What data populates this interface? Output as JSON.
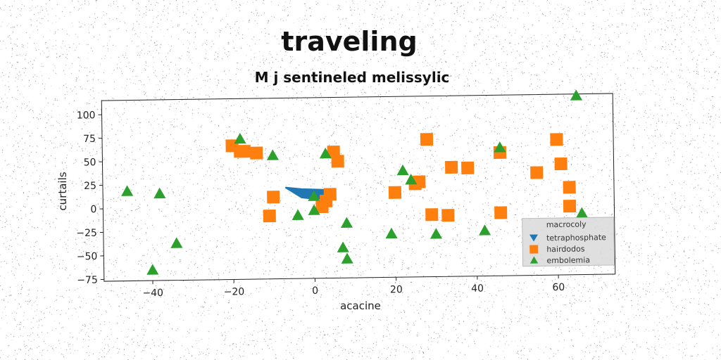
{
  "chart_data": {
    "type": "scatter",
    "title": "traveling",
    "subtitle": "M j sentineled melissylic",
    "xlabel": "acacine",
    "ylabel": "curtails",
    "xlim": [
      -52,
      74
    ],
    "ylim": [
      -77,
      115
    ],
    "xticks": [
      -40,
      -20,
      0,
      20,
      40,
      60
    ],
    "yticks": [
      -75,
      -50,
      -25,
      0,
      25,
      50,
      75,
      100
    ],
    "xtick_labels": [
      "−40",
      "−20",
      "0",
      "20",
      "40",
      "60"
    ],
    "ytick_labels": [
      "−75",
      "−50",
      "−25",
      "0",
      "25",
      "50",
      "75",
      "100"
    ],
    "grid": false,
    "legend_position": "bottom-right",
    "legend_title": "macrocoly",
    "series": [
      {
        "name": "tetraphosphate",
        "marker": "area",
        "color": "#1f77b4",
        "points": [
          [
            -7,
            20
          ],
          [
            -3,
            18
          ],
          [
            3,
            17
          ],
          [
            4,
            12
          ],
          [
            1,
            7
          ],
          [
            -3,
            9
          ]
        ]
      },
      {
        "name": "hairdodos",
        "marker": "square",
        "color": "#ff7f0e",
        "points": [
          [
            -20,
            65
          ],
          [
            -18,
            59
          ],
          [
            -17,
            59
          ],
          [
            -14,
            57
          ],
          [
            -10,
            10
          ],
          [
            -11,
            -10
          ],
          [
            5,
            57
          ],
          [
            6,
            47
          ],
          [
            4,
            12
          ],
          [
            3,
            5
          ],
          [
            2,
            -1
          ],
          [
            20,
            13
          ],
          [
            25,
            22
          ],
          [
            26,
            24
          ],
          [
            28,
            69
          ],
          [
            29,
            -11
          ],
          [
            33,
            -12
          ],
          [
            34,
            39
          ],
          [
            38,
            38
          ],
          [
            46,
            54
          ],
          [
            46,
            -10
          ],
          [
            55,
            32
          ],
          [
            60,
            67
          ],
          [
            61,
            41
          ],
          [
            63,
            16
          ],
          [
            63,
            -4
          ]
        ]
      },
      {
        "name": "embolemia",
        "marker": "triangle",
        "color": "#2ca02c",
        "points": [
          [
            -46,
            18
          ],
          [
            -38,
            15
          ],
          [
            -34,
            -38
          ],
          [
            -40,
            -66
          ],
          [
            -18,
            72
          ],
          [
            -10,
            54
          ],
          [
            -4,
            -10
          ],
          [
            0,
            10
          ],
          [
            0,
            -5
          ],
          [
            3,
            55
          ],
          [
            7,
            -45
          ],
          [
            8,
            -19
          ],
          [
            8,
            -57
          ],
          [
            19,
            -31
          ],
          [
            22,
            36
          ],
          [
            24,
            26
          ],
          [
            30,
            -32
          ],
          [
            42,
            -29
          ],
          [
            46,
            59
          ],
          [
            65,
            113
          ],
          [
            66,
            -12
          ]
        ]
      }
    ]
  }
}
